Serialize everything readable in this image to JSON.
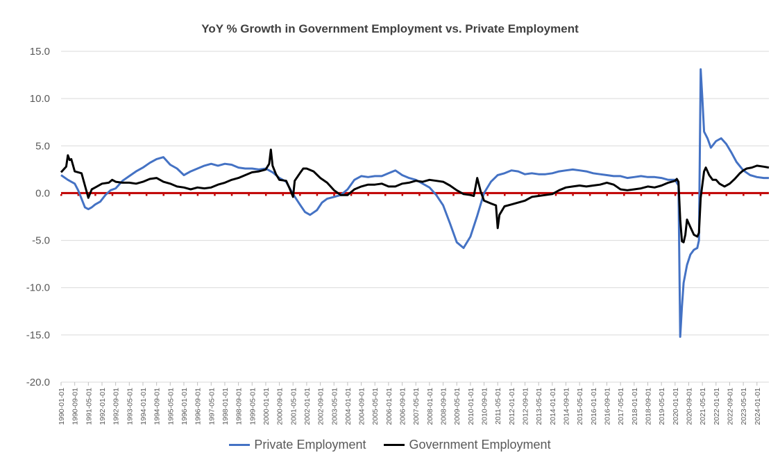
{
  "chart_data": {
    "type": "line",
    "title": "YoY % Growth in Government Employment vs. Private Employment",
    "xlabel": "",
    "ylabel": "",
    "ylim": [
      -20,
      15
    ],
    "yticks": [
      "15.0",
      "10.0",
      "5.0",
      "0.0",
      "-5.0",
      "-10.0",
      "-15.0",
      "-20.0"
    ],
    "ytick_values": [
      15,
      10,
      5,
      0,
      -5,
      -10,
      -15,
      -20
    ],
    "xlim": [
      "1990-01-01",
      "2024-08-01"
    ],
    "x_tick_labels": [
      "1990-01-01",
      "1990-09-01",
      "1991-05-01",
      "1992-01-01",
      "1992-09-01",
      "1993-05-01",
      "1994-01-01",
      "1994-09-01",
      "1995-05-01",
      "1996-01-01",
      "1996-09-01",
      "1997-05-01",
      "1998-01-01",
      "1998-09-01",
      "1999-05-01",
      "2000-01-01",
      "2000-09-01",
      "2001-05-01",
      "2002-01-01",
      "2002-09-01",
      "2003-05-01",
      "2004-01-01",
      "2004-09-01",
      "2005-05-01",
      "2006-01-01",
      "2006-09-01",
      "2007-05-01",
      "2008-01-01",
      "2008-09-01",
      "2009-05-01",
      "2010-01-01",
      "2010-09-01",
      "2011-05-01",
      "2012-01-01",
      "2012-09-01",
      "2013-05-01",
      "2014-01-01",
      "2014-09-01",
      "2015-05-01",
      "2016-01-01",
      "2016-09-01",
      "2017-05-01",
      "2018-01-01",
      "2018-09-01",
      "2019-05-01",
      "2020-01-01",
      "2020-09-01",
      "2021-05-01",
      "2022-01-01",
      "2022-09-01",
      "2023-05-01",
      "2024-01-01"
    ],
    "grid": "horizontal",
    "legend_position": "bottom",
    "reference_line": {
      "y": 0,
      "color": "#c00000"
    },
    "series": [
      {
        "name": "Private Employment",
        "color": "#4472c4",
        "points": [
          [
            "1990-01-01",
            1.9
          ],
          [
            "1990-05-01",
            1.4
          ],
          [
            "1990-09-01",
            1.0
          ],
          [
            "1990-11-01",
            0.3
          ],
          [
            "1991-01-01",
            -0.6
          ],
          [
            "1991-03-01",
            -1.5
          ],
          [
            "1991-05-01",
            -1.7
          ],
          [
            "1991-07-01",
            -1.5
          ],
          [
            "1991-09-01",
            -1.2
          ],
          [
            "1991-12-01",
            -0.9
          ],
          [
            "1992-03-01",
            -0.2
          ],
          [
            "1992-06-01",
            0.3
          ],
          [
            "1992-09-01",
            0.5
          ],
          [
            "1993-01-01",
            1.3
          ],
          [
            "1993-05-01",
            1.8
          ],
          [
            "1993-09-01",
            2.3
          ],
          [
            "1994-01-01",
            2.7
          ],
          [
            "1994-05-01",
            3.2
          ],
          [
            "1994-09-01",
            3.6
          ],
          [
            "1995-01-01",
            3.8
          ],
          [
            "1995-05-01",
            3.0
          ],
          [
            "1995-09-01",
            2.6
          ],
          [
            "1996-01-01",
            1.9
          ],
          [
            "1996-05-01",
            2.3
          ],
          [
            "1996-09-01",
            2.6
          ],
          [
            "1997-01-01",
            2.9
          ],
          [
            "1997-05-01",
            3.1
          ],
          [
            "1997-09-01",
            2.9
          ],
          [
            "1998-01-01",
            3.1
          ],
          [
            "1998-05-01",
            3.0
          ],
          [
            "1998-09-01",
            2.7
          ],
          [
            "1999-01-01",
            2.6
          ],
          [
            "1999-05-01",
            2.6
          ],
          [
            "1999-09-01",
            2.5
          ],
          [
            "2000-01-01",
            2.6
          ],
          [
            "2000-05-01",
            2.2
          ],
          [
            "2000-09-01",
            1.6
          ],
          [
            "2001-01-01",
            1.2
          ],
          [
            "2001-05-01",
            -0.1
          ],
          [
            "2001-09-01",
            -1.2
          ],
          [
            "2001-12-01",
            -2.0
          ],
          [
            "2002-03-01",
            -2.3
          ],
          [
            "2002-07-01",
            -1.8
          ],
          [
            "2002-10-01",
            -1.0
          ],
          [
            "2003-01-01",
            -0.6
          ],
          [
            "2003-05-01",
            -0.4
          ],
          [
            "2003-09-01",
            -0.2
          ],
          [
            "2004-01-01",
            0.4
          ],
          [
            "2004-05-01",
            1.4
          ],
          [
            "2004-09-01",
            1.8
          ],
          [
            "2005-01-01",
            1.7
          ],
          [
            "2005-05-01",
            1.8
          ],
          [
            "2005-09-01",
            1.8
          ],
          [
            "2006-01-01",
            2.1
          ],
          [
            "2006-05-01",
            2.4
          ],
          [
            "2006-09-01",
            1.9
          ],
          [
            "2007-01-01",
            1.6
          ],
          [
            "2007-05-01",
            1.4
          ],
          [
            "2007-09-01",
            1.0
          ],
          [
            "2008-01-01",
            0.6
          ],
          [
            "2008-05-01",
            -0.2
          ],
          [
            "2008-09-01",
            -1.3
          ],
          [
            "2009-01-01",
            -3.2
          ],
          [
            "2009-05-01",
            -5.2
          ],
          [
            "2009-09-01",
            -5.8
          ],
          [
            "2010-01-01",
            -4.6
          ],
          [
            "2010-05-01",
            -2.4
          ],
          [
            "2010-09-01",
            0.0
          ],
          [
            "2011-01-01",
            1.2
          ],
          [
            "2011-05-01",
            1.9
          ],
          [
            "2011-09-01",
            2.1
          ],
          [
            "2012-01-01",
            2.4
          ],
          [
            "2012-05-01",
            2.3
          ],
          [
            "2012-09-01",
            2.0
          ],
          [
            "2013-01-01",
            2.1
          ],
          [
            "2013-05-01",
            2.0
          ],
          [
            "2013-09-01",
            2.0
          ],
          [
            "2014-01-01",
            2.1
          ],
          [
            "2014-05-01",
            2.3
          ],
          [
            "2014-09-01",
            2.4
          ],
          [
            "2015-01-01",
            2.5
          ],
          [
            "2015-05-01",
            2.4
          ],
          [
            "2015-09-01",
            2.3
          ],
          [
            "2016-01-01",
            2.1
          ],
          [
            "2016-05-01",
            2.0
          ],
          [
            "2016-09-01",
            1.9
          ],
          [
            "2017-01-01",
            1.8
          ],
          [
            "2017-05-01",
            1.8
          ],
          [
            "2017-09-01",
            1.6
          ],
          [
            "2018-01-01",
            1.7
          ],
          [
            "2018-05-01",
            1.8
          ],
          [
            "2018-09-01",
            1.7
          ],
          [
            "2019-01-01",
            1.7
          ],
          [
            "2019-05-01",
            1.6
          ],
          [
            "2019-09-01",
            1.4
          ],
          [
            "2020-01-01",
            1.4
          ],
          [
            "2020-03-01",
            0.8
          ],
          [
            "2020-04-01",
            -15.2
          ],
          [
            "2020-05-01",
            -12.0
          ],
          [
            "2020-06-01",
            -9.5
          ],
          [
            "2020-08-01",
            -7.6
          ],
          [
            "2020-10-01",
            -6.5
          ],
          [
            "2020-12-01",
            -6.0
          ],
          [
            "2021-02-01",
            -5.8
          ],
          [
            "2021-03-01",
            -5.0
          ],
          [
            "2021-04-01",
            13.1
          ],
          [
            "2021-05-01",
            10.0
          ],
          [
            "2021-06-01",
            6.5
          ],
          [
            "2021-08-01",
            5.8
          ],
          [
            "2021-10-01",
            4.8
          ],
          [
            "2022-01-01",
            5.5
          ],
          [
            "2022-04-01",
            5.8
          ],
          [
            "2022-07-01",
            5.2
          ],
          [
            "2022-10-01",
            4.3
          ],
          [
            "2023-01-01",
            3.3
          ],
          [
            "2023-05-01",
            2.4
          ],
          [
            "2023-09-01",
            1.9
          ],
          [
            "2024-01-01",
            1.7
          ],
          [
            "2024-05-01",
            1.6
          ],
          [
            "2024-08-01",
            1.6
          ]
        ]
      },
      {
        "name": "Government Employment",
        "color": "#000000",
        "points": [
          [
            "1990-01-01",
            2.2
          ],
          [
            "1990-04-01",
            2.8
          ],
          [
            "1990-05-01",
            4.0
          ],
          [
            "1990-06-01",
            3.5
          ],
          [
            "1990-07-01",
            3.6
          ],
          [
            "1990-09-01",
            2.3
          ],
          [
            "1991-01-01",
            2.1
          ],
          [
            "1991-03-01",
            0.8
          ],
          [
            "1991-05-01",
            -0.5
          ],
          [
            "1991-07-01",
            0.4
          ],
          [
            "1991-09-01",
            0.6
          ],
          [
            "1992-01-01",
            1.0
          ],
          [
            "1992-05-01",
            1.1
          ],
          [
            "1992-07-01",
            1.4
          ],
          [
            "1992-09-01",
            1.2
          ],
          [
            "1993-01-01",
            1.1
          ],
          [
            "1993-05-01",
            1.1
          ],
          [
            "1993-09-01",
            1.0
          ],
          [
            "1994-01-01",
            1.2
          ],
          [
            "1994-05-01",
            1.5
          ],
          [
            "1994-09-01",
            1.6
          ],
          [
            "1995-01-01",
            1.2
          ],
          [
            "1995-05-01",
            1.0
          ],
          [
            "1995-09-01",
            0.7
          ],
          [
            "1996-01-01",
            0.6
          ],
          [
            "1996-05-01",
            0.4
          ],
          [
            "1996-09-01",
            0.6
          ],
          [
            "1997-01-01",
            0.5
          ],
          [
            "1997-05-01",
            0.6
          ],
          [
            "1997-09-01",
            0.9
          ],
          [
            "1998-01-01",
            1.1
          ],
          [
            "1998-05-01",
            1.4
          ],
          [
            "1998-09-01",
            1.6
          ],
          [
            "1999-01-01",
            1.9
          ],
          [
            "1999-05-01",
            2.2
          ],
          [
            "1999-09-01",
            2.3
          ],
          [
            "2000-01-01",
            2.5
          ],
          [
            "2000-03-01",
            3.1
          ],
          [
            "2000-04-01",
            4.6
          ],
          [
            "2000-05-01",
            2.9
          ],
          [
            "2000-07-01",
            2.0
          ],
          [
            "2000-09-01",
            1.4
          ],
          [
            "2001-01-01",
            1.3
          ],
          [
            "2001-03-01",
            0.5
          ],
          [
            "2001-05-01",
            -0.4
          ],
          [
            "2001-06-01",
            1.3
          ],
          [
            "2001-09-01",
            2.1
          ],
          [
            "2001-11-01",
            2.6
          ],
          [
            "2002-01-01",
            2.6
          ],
          [
            "2002-05-01",
            2.3
          ],
          [
            "2002-09-01",
            1.6
          ],
          [
            "2003-01-01",
            1.1
          ],
          [
            "2003-05-01",
            0.3
          ],
          [
            "2003-09-01",
            -0.2
          ],
          [
            "2004-01-01",
            -0.2
          ],
          [
            "2004-05-01",
            0.4
          ],
          [
            "2004-09-01",
            0.7
          ],
          [
            "2005-01-01",
            0.9
          ],
          [
            "2005-05-01",
            0.9
          ],
          [
            "2005-09-01",
            1.0
          ],
          [
            "2006-01-01",
            0.7
          ],
          [
            "2006-05-01",
            0.7
          ],
          [
            "2006-09-01",
            1.0
          ],
          [
            "2007-01-01",
            1.1
          ],
          [
            "2007-05-01",
            1.3
          ],
          [
            "2007-09-01",
            1.2
          ],
          [
            "2008-01-01",
            1.4
          ],
          [
            "2008-05-01",
            1.3
          ],
          [
            "2008-09-01",
            1.2
          ],
          [
            "2009-01-01",
            0.8
          ],
          [
            "2009-05-01",
            0.3
          ],
          [
            "2009-09-01",
            -0.1
          ],
          [
            "2010-01-01",
            -0.2
          ],
          [
            "2010-03-01",
            -0.3
          ],
          [
            "2010-05-01",
            1.6
          ],
          [
            "2010-07-01",
            0.2
          ],
          [
            "2010-09-01",
            -0.8
          ],
          [
            "2011-01-01",
            -1.1
          ],
          [
            "2011-04-01",
            -1.3
          ],
          [
            "2011-05-01",
            -3.7
          ],
          [
            "2011-06-01",
            -2.3
          ],
          [
            "2011-09-01",
            -1.4
          ],
          [
            "2012-01-01",
            -1.2
          ],
          [
            "2012-05-01",
            -1.0
          ],
          [
            "2012-09-01",
            -0.8
          ],
          [
            "2013-01-01",
            -0.4
          ],
          [
            "2013-05-01",
            -0.3
          ],
          [
            "2013-09-01",
            -0.2
          ],
          [
            "2014-01-01",
            -0.1
          ],
          [
            "2014-05-01",
            0.3
          ],
          [
            "2014-09-01",
            0.6
          ],
          [
            "2015-01-01",
            0.7
          ],
          [
            "2015-05-01",
            0.8
          ],
          [
            "2015-09-01",
            0.7
          ],
          [
            "2016-01-01",
            0.8
          ],
          [
            "2016-05-01",
            0.9
          ],
          [
            "2016-09-01",
            1.1
          ],
          [
            "2017-01-01",
            0.9
          ],
          [
            "2017-05-01",
            0.4
          ],
          [
            "2017-09-01",
            0.3
          ],
          [
            "2018-01-01",
            0.4
          ],
          [
            "2018-05-01",
            0.5
          ],
          [
            "2018-09-01",
            0.7
          ],
          [
            "2019-01-01",
            0.6
          ],
          [
            "2019-05-01",
            0.8
          ],
          [
            "2019-09-01",
            1.1
          ],
          [
            "2020-01-01",
            1.3
          ],
          [
            "2020-02-01",
            1.5
          ],
          [
            "2020-03-01",
            1.2
          ],
          [
            "2020-04-01",
            -2.8
          ],
          [
            "2020-05-01",
            -5.1
          ],
          [
            "2020-06-01",
            -5.2
          ],
          [
            "2020-07-01",
            -4.4
          ],
          [
            "2020-08-01",
            -2.8
          ],
          [
            "2020-10-01",
            -3.6
          ],
          [
            "2020-12-01",
            -4.4
          ],
          [
            "2021-02-01",
            -4.6
          ],
          [
            "2021-03-01",
            -4.2
          ],
          [
            "2021-04-01",
            -0.5
          ],
          [
            "2021-06-01",
            2.3
          ],
          [
            "2021-07-01",
            2.7
          ],
          [
            "2021-09-01",
            1.9
          ],
          [
            "2021-11-01",
            1.4
          ],
          [
            "2022-01-01",
            1.4
          ],
          [
            "2022-03-01",
            1.0
          ],
          [
            "2022-06-01",
            0.7
          ],
          [
            "2022-09-01",
            1.0
          ],
          [
            "2022-12-01",
            1.5
          ],
          [
            "2023-03-01",
            2.1
          ],
          [
            "2023-05-01",
            2.4
          ],
          [
            "2023-07-01",
            2.6
          ],
          [
            "2023-10-01",
            2.7
          ],
          [
            "2024-01-01",
            2.9
          ],
          [
            "2024-05-01",
            2.8
          ],
          [
            "2024-08-01",
            2.7
          ]
        ]
      }
    ]
  }
}
